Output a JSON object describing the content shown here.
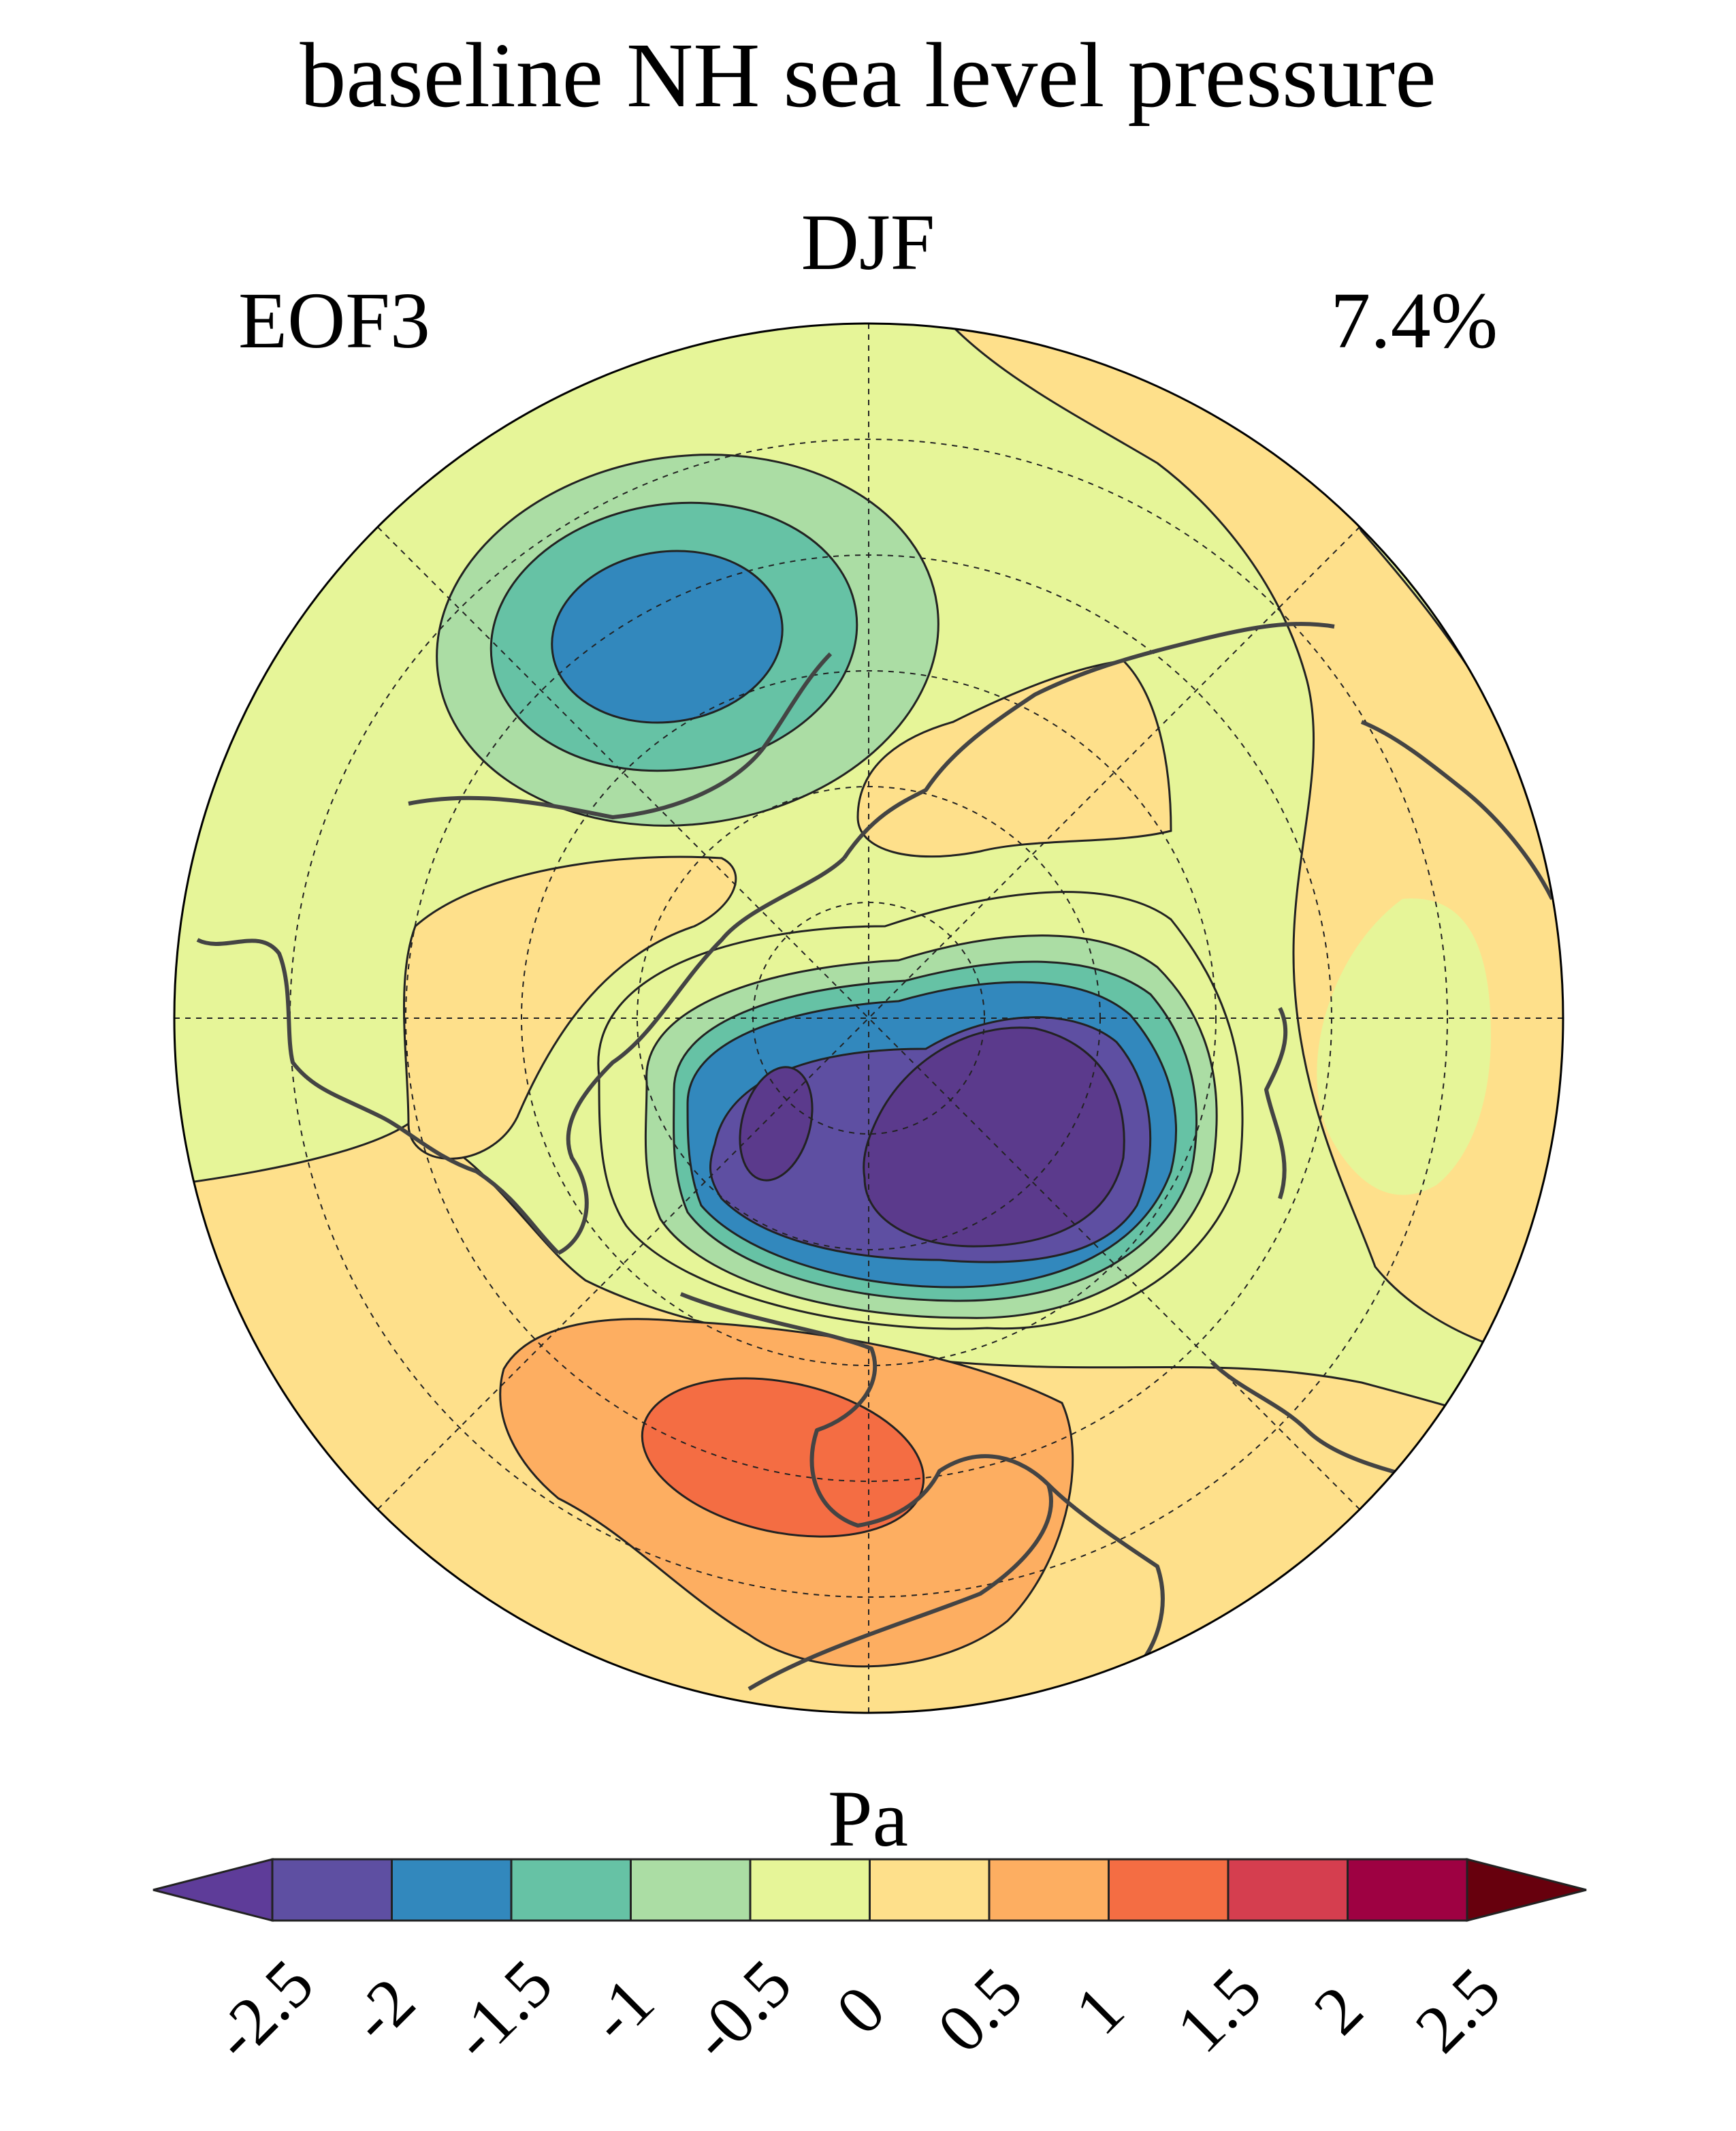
{
  "title": "baseline NH sea level pressure",
  "season": "DJF",
  "mode_label": "EOF3",
  "variance_label": "7.4%",
  "colorbar": {
    "unit": "Pa",
    "tick_labels": [
      "-2.5",
      "-2",
      "-1.5",
      "-1",
      "-0.5",
      "0",
      "0.5",
      "1",
      "1.5",
      "2",
      "2.5"
    ],
    "levels": [
      -2.5,
      -2,
      -1.5,
      -1,
      -0.5,
      0,
      0.5,
      1,
      1.5,
      2,
      2.5
    ],
    "colors": [
      "#5e4fa2",
      "#3288bd",
      "#66c2a5",
      "#abdda4",
      "#e6f598",
      "#fee08b",
      "#fdae61",
      "#f46d43",
      "#d53e4f",
      "#9e0142"
    ],
    "under_color": "#5e3c99",
    "over_color": "#67000d",
    "extend": "both"
  },
  "map": {
    "projection": "north polar stereographic",
    "background_color": "#e6f598",
    "positive_color": "#fee08b",
    "gridlines": "dashed"
  }
}
